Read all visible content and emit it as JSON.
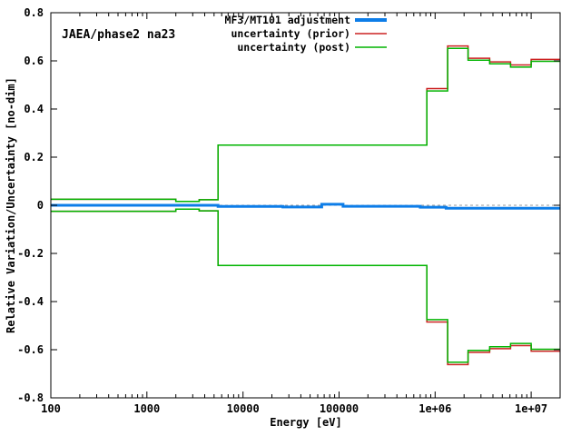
{
  "window": {
    "background": "#ffffff",
    "border_color": "#000000"
  },
  "annotation": {
    "text": "JAEA/phase2 na23"
  },
  "legend": {
    "entries": [
      {
        "label": "MF3/MT101 adjustment",
        "color": "#0d7de8",
        "sample_width": 4
      },
      {
        "label": "uncertainty (prior)",
        "color": "#cc2222",
        "sample_width": 1.5
      },
      {
        "label": "uncertainty (post)",
        "color": "#00b400",
        "sample_width": 1.5
      }
    ]
  },
  "axes": {
    "x": {
      "label": "Energy [eV]",
      "scale": "log",
      "min": 100,
      "max": 20000000,
      "major_tick_values": [
        100,
        1000,
        10000,
        100000,
        1000000,
        10000000
      ],
      "major_tick_labels": [
        "100",
        "1000",
        "10000",
        "100000",
        "1e+06",
        "1e+07"
      ],
      "minor_ticks": "log 2-9 per decade, mirrored top"
    },
    "y": {
      "label": "Relative Variation/Uncertainty [no-dim]",
      "scale": "linear",
      "min": -0.8,
      "max": 0.8,
      "tick_values": [
        0.8,
        0.6,
        0.4,
        0.2,
        0,
        -0.2,
        -0.4,
        -0.6,
        -0.8
      ],
      "tick_labels": [
        "0.8",
        "0.6",
        "0.4",
        "0.2",
        "0",
        "-0.2",
        "-0.4",
        "-0.6",
        "-0.8"
      ],
      "mirrored_right": true
    }
  },
  "chart_data": {
    "type": "line",
    "subtype": "step-histogram",
    "title": "",
    "xlabel": "Energy [eV]",
    "ylabel": "Relative Variation/Uncertainty [no-dim]",
    "xlim": [
      100,
      20000000
    ],
    "ylim": [
      -0.8,
      0.8
    ],
    "grid": false,
    "legend_position": "top-right-inside",
    "zero_line": {
      "value": 0,
      "style": "dotted",
      "color": "#999999"
    },
    "series": [
      {
        "name": "MF3/MT101 adjustment",
        "color": "#0d7de8",
        "line_width": 3,
        "mirror": false,
        "bin_edges_eV": [
          100,
          5500,
          26000,
          66000,
          110000,
          700000,
          1300000,
          20000000
        ],
        "values": [
          0.0,
          -0.005,
          -0.007,
          0.004,
          -0.004,
          -0.008,
          -0.012
        ]
      },
      {
        "name": "uncertainty (prior)",
        "color": "#cc2222",
        "line_width": 1.5,
        "mirror": true,
        "bin_edges_eV": [
          100,
          2000,
          3500,
          5500,
          820000,
          1350000,
          2200000,
          3700000,
          6100000,
          10000000,
          20000000
        ],
        "values": [
          0.025,
          0.016,
          0.023,
          0.25,
          0.485,
          0.662,
          0.611,
          0.596,
          0.583,
          0.606
        ]
      },
      {
        "name": "uncertainty (post)",
        "color": "#00b400",
        "line_width": 1.5,
        "mirror": true,
        "bin_edges_eV": [
          100,
          2000,
          3500,
          5500,
          820000,
          1350000,
          2200000,
          3700000,
          6100000,
          10000000,
          20000000
        ],
        "values": [
          0.025,
          0.016,
          0.023,
          0.25,
          0.475,
          0.652,
          0.603,
          0.588,
          0.574,
          0.598
        ]
      }
    ]
  }
}
